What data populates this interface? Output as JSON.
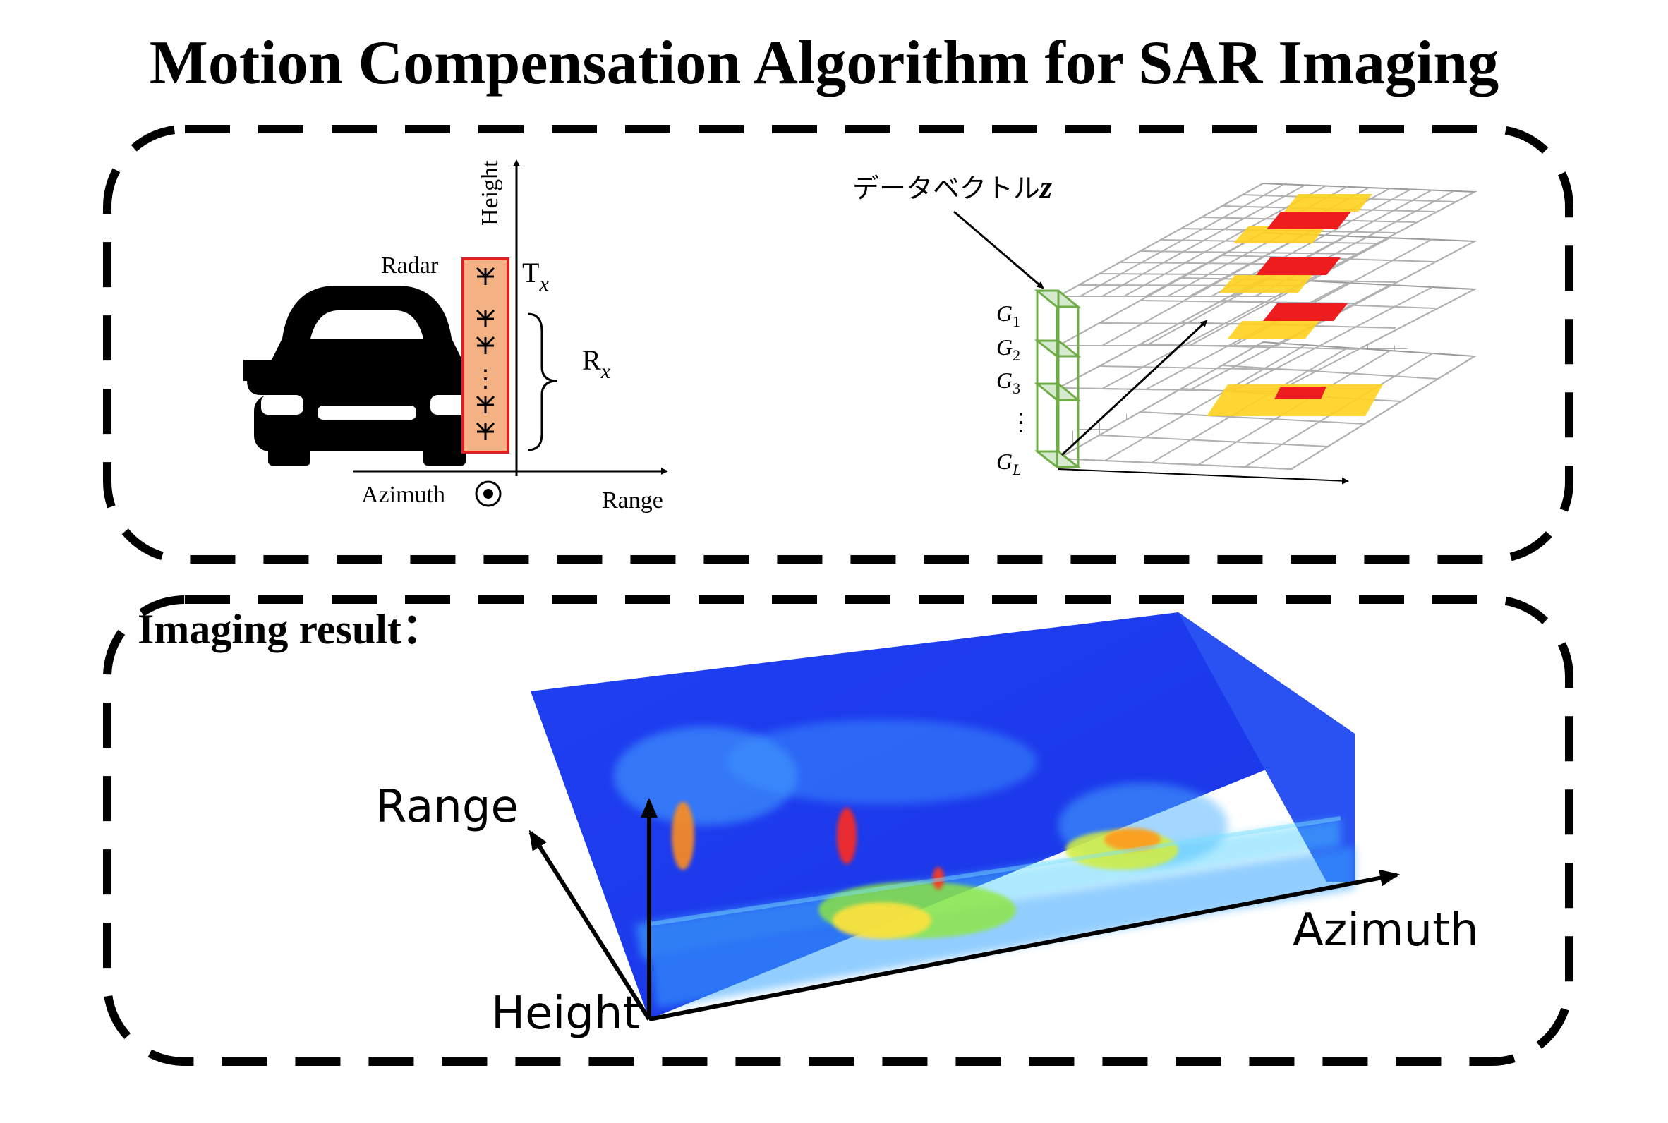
{
  "title": "Motion Compensation Algorithm for SAR Imaging",
  "top_panel": {
    "radar_diagram": {
      "height_label": "Height",
      "radar_label": "Radar",
      "tx_main": "T",
      "tx_sub": "x",
      "rx_main": "R",
      "rx_sub": "x",
      "range_label": "Range",
      "azimuth_label": "Azimuth",
      "ellipsis": "⋮"
    },
    "grid_diagram": {
      "data_vector_label": "データベクトル",
      "data_vector_symbol": "z",
      "layers": [
        {
          "main": "G",
          "sub": "1"
        },
        {
          "main": "G",
          "sub": "2"
        },
        {
          "main": "G",
          "sub": "3"
        },
        {
          "main": "G",
          "sub": "L"
        }
      ],
      "ellipsis": "⋮"
    }
  },
  "bottom_panel": {
    "result_label": "Imaging result：",
    "axes": {
      "range": "Range",
      "azimuth": "Azimuth",
      "height": "Height"
    }
  },
  "colors": {
    "border": "#000000",
    "radar_fill": "#f4b183",
    "radar_outline": "#e02020",
    "layer_box": "#70ad47",
    "hot_yellow": "#ffd21e",
    "hot_red": "#ee1c1c",
    "volume_blue": "#1e3cf0"
  }
}
